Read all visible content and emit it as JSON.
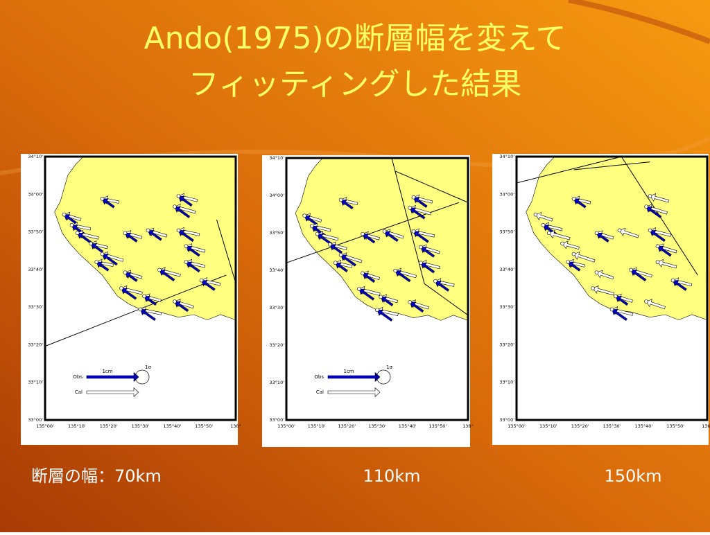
{
  "title": {
    "lines": [
      "Ando(1975)の断層幅を変えて",
      "フィッティングした結果"
    ]
  },
  "map_axes": {
    "lat_labels": [
      "34°10'",
      "34°00'",
      "33°50'",
      "33°40'",
      "33°30'",
      "33°20'",
      "33°10'",
      "33°00'"
    ],
    "lon_labels": [
      "135°00'",
      "135°10'",
      "135°20'",
      "135°30'",
      "135°40'",
      "135°50'",
      "136°"
    ]
  },
  "legend": {
    "scale": "1cm",
    "sigma": "1σ",
    "obs": "Obs",
    "cal": "Cal"
  },
  "captions": [
    "断層の幅：70km",
    "110km",
    "150km"
  ]
}
